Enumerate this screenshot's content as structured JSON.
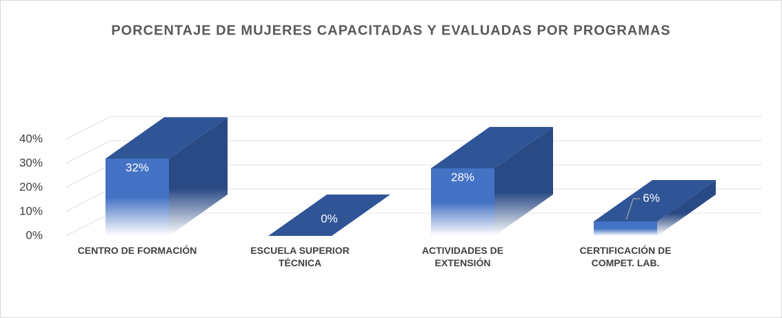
{
  "chart_data": {
    "type": "bar3d",
    "title": "PORCENTAJE DE MUJERES CAPACITADAS Y EVALUADAS POR PROGRAMAS",
    "categories": [
      "CENTRO DE FORMACIÓN",
      "ESCUELA SUPERIOR TÉCNICA",
      "ACTIVIDADES DE EXTENSIÓN",
      "CERTIFICACIÓN DE COMPET. LAB."
    ],
    "values": [
      32,
      0,
      28,
      6
    ],
    "value_labels": [
      "32%",
      "0%",
      "28%",
      "6%"
    ],
    "color": "#4472c4",
    "ylim": [
      0,
      40
    ],
    "yticks": [
      {
        "value": 0,
        "label": "0%"
      },
      {
        "value": 10,
        "label": "10%"
      },
      {
        "value": 20,
        "label": "20%"
      },
      {
        "value": 30,
        "label": "30%"
      },
      {
        "value": 40,
        "label": "40%"
      }
    ],
    "grid": true
  }
}
